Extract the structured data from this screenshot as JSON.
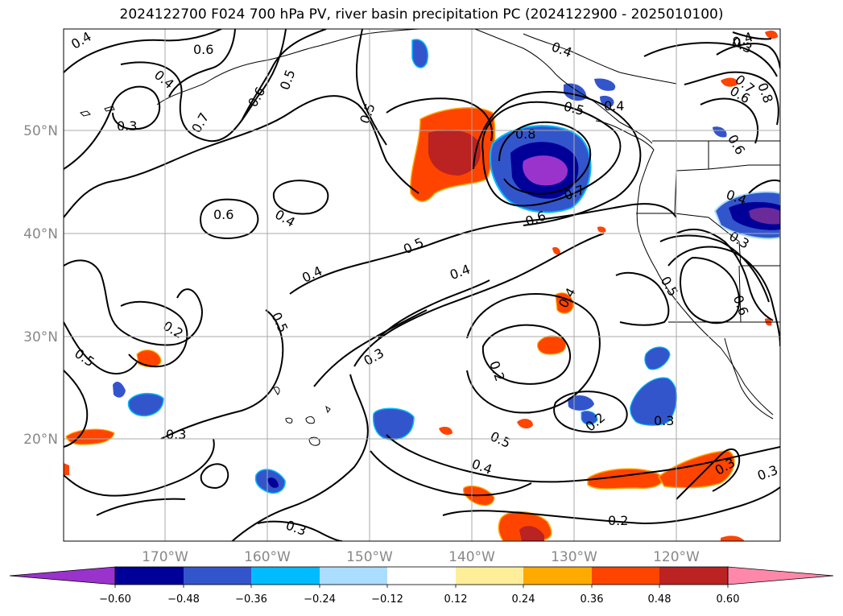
{
  "title": "2024122700 F024 700 hPa PV, river basin precipitation PC (2024122900 - 2025010100)",
  "lat_labels": [
    "50°N",
    "40°N",
    "30°N",
    "20°N"
  ],
  "lon_labels": [
    "170°W",
    "160°W",
    "150°W",
    "140°W",
    "130°W",
    "120°W"
  ],
  "colorbar": {
    "colors": [
      "#9933cc",
      "#000099",
      "#3355cc",
      "#00bbff",
      "#aaddff",
      "#ffffff",
      "#ffee99",
      "#ffaa00",
      "#ff4400",
      "#bb2222",
      "#ff88aa"
    ],
    "tick_labels": [
      "−0.60",
      "−0.48",
      "−0.36",
      "−0.24",
      "−0.12",
      "0.12",
      "0.24",
      "0.36",
      "0.48",
      "0.60"
    ]
  },
  "contour_labels": [
    "0.4",
    "0.6",
    "0.4",
    "0.3",
    "0.7",
    "0.6",
    "0.5",
    "0.5",
    "0.8",
    "0.7",
    "0.6",
    "0.4",
    "0.6",
    "0.5",
    "0.4",
    "0.4",
    "0.5",
    "0.2",
    "0.5",
    "0.3",
    "0.2",
    "0.4",
    "0.4",
    "0.3",
    "0.3",
    "0.5",
    "0.4",
    "0.2",
    "0.3",
    "0.2",
    "0.3",
    "0.3",
    "0.3",
    "0.5",
    "0.4",
    "0.4",
    "0.6",
    "0.7",
    "0.8",
    "0.6",
    "0.5",
    "0.4",
    "0.3",
    "0.6"
  ]
}
